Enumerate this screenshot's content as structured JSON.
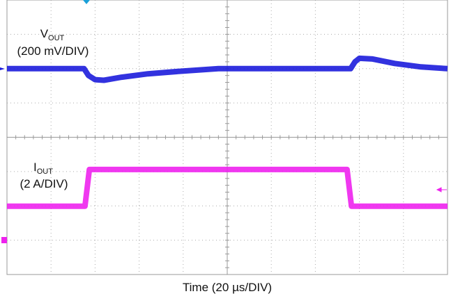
{
  "chart_data": {
    "type": "line",
    "title_parts": {
      "v_main": "V",
      "v_sub": "OUT",
      "v_scale": "(200 mV/DIV)",
      "i_main": "I",
      "i_sub": "OUT",
      "i_scale": "(2 A/DIV)"
    },
    "x_label": "Time (20 µs/DIV)",
    "xlim": [
      0,
      10
    ],
    "ylim": [
      0,
      8
    ],
    "grid": true,
    "series": [
      {
        "name": "VOUT",
        "color": "#1c1cdc",
        "x": [
          0,
          1.75,
          1.85,
          2.0,
          2.2,
          2.6,
          3.2,
          4.0,
          4.8,
          7.8,
          7.9,
          8.0,
          8.3,
          8.8,
          9.4,
          10
        ],
        "values": [
          6,
          6,
          5.8,
          5.68,
          5.66,
          5.75,
          5.85,
          5.93,
          6,
          6,
          6.2,
          6.3,
          6.28,
          6.15,
          6.05,
          6.0
        ]
      },
      {
        "name": "IOUT",
        "color": "#ee22ee",
        "x": [
          0,
          1.77,
          1.87,
          7.72,
          7.82,
          10
        ],
        "values": [
          1.99,
          1.99,
          3.06,
          3.06,
          1.99,
          1.99
        ]
      }
    ]
  }
}
